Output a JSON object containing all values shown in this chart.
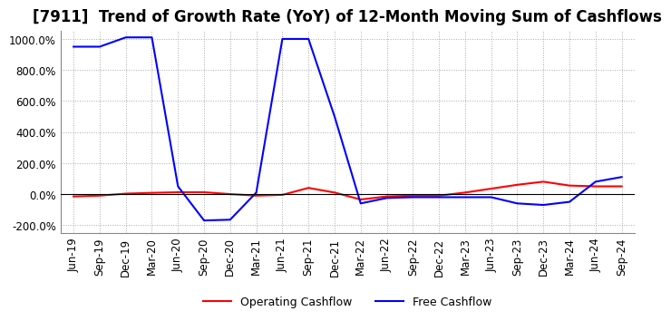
{
  "title": "[7911]  Trend of Growth Rate (YoY) of 12-Month Moving Sum of Cashflows",
  "ylim": [
    -250,
    1050
  ],
  "yticks": [
    -200,
    0,
    200,
    400,
    600,
    800,
    1000
  ],
  "ytick_labels": [
    "-200.0%",
    "0.0%",
    "200.0%",
    "400.0%",
    "600.0%",
    "800.0%",
    "1000.0%"
  ],
  "background_color": "#ffffff",
  "grid_color": "#aaaaaa",
  "x_labels": [
    "Jun-19",
    "Sep-19",
    "Dec-19",
    "Mar-20",
    "Jun-20",
    "Sep-20",
    "Dec-20",
    "Mar-21",
    "Jun-21",
    "Sep-21",
    "Dec-21",
    "Mar-22",
    "Jun-22",
    "Sep-22",
    "Dec-22",
    "Mar-23",
    "Jun-23",
    "Sep-23",
    "Dec-23",
    "Mar-24",
    "Jun-24",
    "Sep-24"
  ],
  "operating_cashflow": [
    -15,
    -10,
    3,
    8,
    12,
    12,
    0,
    -10,
    -5,
    40,
    10,
    -35,
    -15,
    -10,
    -10,
    10,
    35,
    60,
    80,
    55,
    50,
    50
  ],
  "free_cashflow": [
    950,
    950,
    1010,
    1010,
    50,
    -170,
    -165,
    10,
    1000,
    1000,
    500,
    -60,
    -25,
    -20,
    -20,
    -20,
    -20,
    -60,
    -70,
    -50,
    80,
    110
  ],
  "op_color": "#ff0000",
  "free_color": "#0000ff",
  "legend_labels": [
    "Operating Cashflow",
    "Free Cashflow"
  ],
  "title_fontsize": 12,
  "tick_fontsize": 8.5
}
